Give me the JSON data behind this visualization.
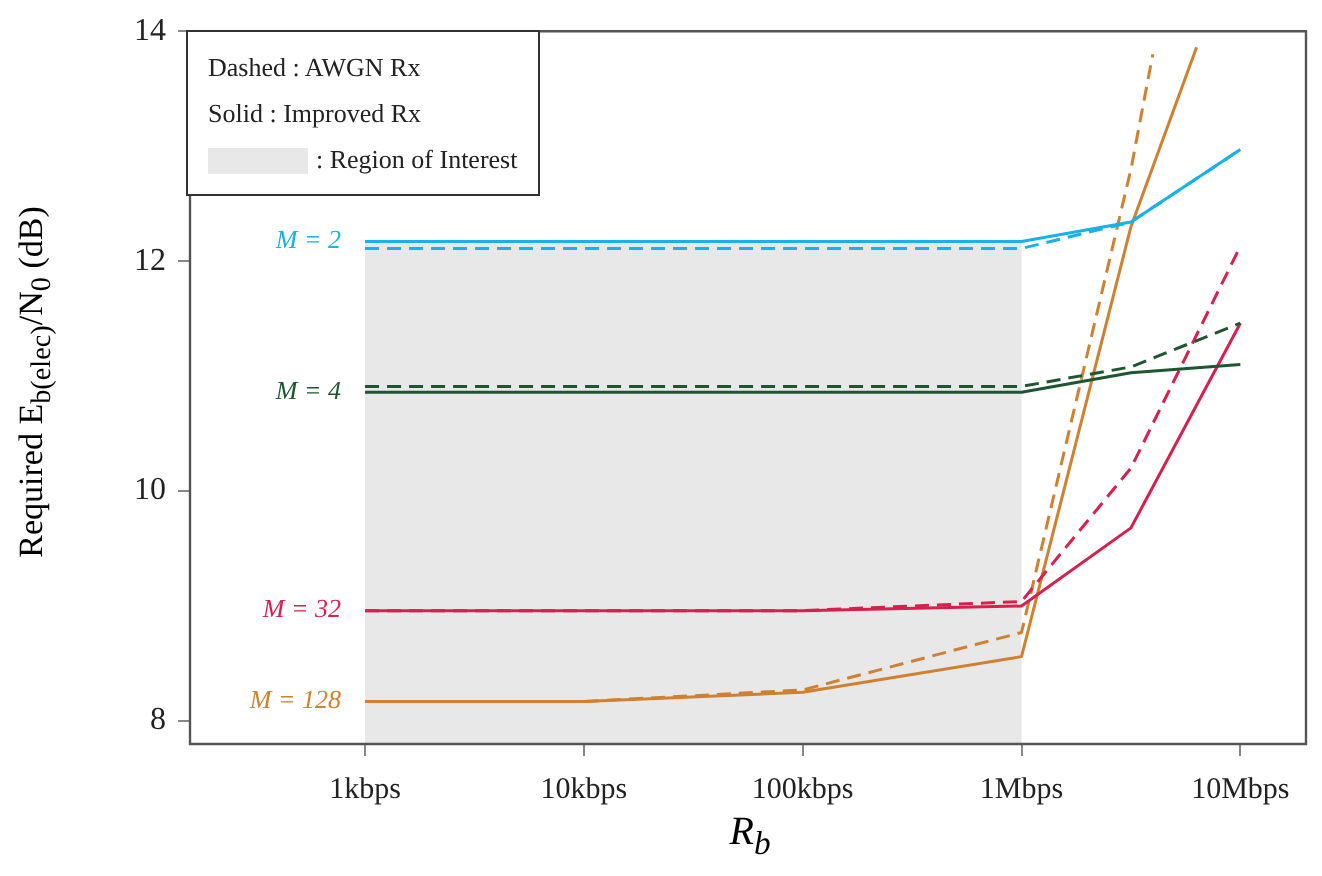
{
  "chart_data": {
    "type": "line",
    "xlabel": "R$_{b}$",
    "ylabel": "Required E$_{b(elec)}$/N$_{0}$ (dB)",
    "grid": false,
    "legend": "top left",
    "marker": "none",
    "categories": [
      null,
      null,
      null,
      null,
      null,
      null,
      null,
      null,
      "1kbps",
      null,
      null,
      null,
      null,
      null,
      null,
      null,
      null,
      null,
      "10kbps",
      null,
      null,
      null,
      null,
      null,
      null,
      null,
      null,
      null,
      "100kbps",
      null,
      null,
      null,
      null,
      null,
      null,
      null,
      null,
      null,
      "1Mbps",
      null,
      null,
      null,
      null,
      null,
      null,
      null,
      null,
      null,
      "10Mbps",
      null,
      null,
      null
    ],
    "ylim": [
      7.8,
      14
    ],
    "yticks": [
      8,
      10,
      12,
      14
    ],
    "annotations": [
      "Dashed : AWGN Rx",
      "Solid : Improved Rx"
    ],
    "bands": [
      {
        "axis": "x",
        "from": "1kbps",
        "to": "1Mbps",
        "label": ": Region of Interest",
        "color": "#e8e8e8"
      }
    ],
    "series": [
      {
        "name": "M = 2",
        "color": "#1ab0e8",
        "line_style": "solid",
        "values": [
          null,
          null,
          null,
          null,
          null,
          null,
          null,
          null,
          12.17,
          null,
          null,
          null,
          null,
          null,
          null,
          null,
          null,
          null,
          12.17,
          null,
          null,
          null,
          null,
          null,
          null,
          null,
          null,
          null,
          12.17,
          null,
          null,
          null,
          null,
          null,
          null,
          null,
          null,
          null,
          12.17,
          null,
          null,
          null,
          null,
          12.34,
          null,
          null,
          null,
          null,
          12.97,
          null,
          null,
          null
        ]
      },
      {
        "color": "#1ab0e8",
        "line_style": "dashed",
        "values": [
          null,
          null,
          null,
          null,
          null,
          null,
          null,
          null,
          12.11,
          null,
          null,
          null,
          null,
          null,
          null,
          null,
          null,
          null,
          12.11,
          null,
          null,
          null,
          null,
          null,
          null,
          null,
          null,
          null,
          12.11,
          null,
          null,
          null,
          null,
          null,
          null,
          null,
          null,
          null,
          12.11,
          null,
          null,
          null,
          null,
          12.34,
          null,
          null,
          null,
          null,
          12.97,
          null,
          null,
          null
        ]
      },
      {
        "name": "M = 4",
        "color": "#1e5631",
        "line_style": "solid",
        "values": [
          null,
          null,
          null,
          null,
          null,
          null,
          null,
          null,
          10.86,
          null,
          null,
          null,
          null,
          null,
          null,
          null,
          null,
          null,
          10.86,
          null,
          null,
          null,
          null,
          null,
          null,
          null,
          null,
          null,
          10.86,
          null,
          null,
          null,
          null,
          null,
          null,
          null,
          null,
          null,
          10.86,
          null,
          null,
          null,
          null,
          11.03,
          null,
          null,
          null,
          null,
          11.1,
          null,
          null,
          null
        ]
      },
      {
        "color": "#1e5631",
        "line_style": "dashed",
        "values": [
          null,
          null,
          null,
          null,
          null,
          null,
          null,
          null,
          10.91,
          null,
          null,
          null,
          null,
          null,
          null,
          null,
          null,
          null,
          10.91,
          null,
          null,
          null,
          null,
          null,
          null,
          null,
          null,
          null,
          10.91,
          null,
          null,
          null,
          null,
          null,
          null,
          null,
          null,
          null,
          10.91,
          null,
          null,
          null,
          null,
          11.08,
          null,
          null,
          null,
          null,
          11.46,
          null,
          null,
          null
        ]
      },
      {
        "name": "M = 32",
        "color": "#d6204e",
        "line_style": "solid",
        "values": [
          null,
          null,
          null,
          null,
          null,
          null,
          null,
          null,
          8.96,
          null,
          null,
          null,
          null,
          null,
          null,
          null,
          null,
          null,
          8.96,
          null,
          null,
          null,
          null,
          null,
          null,
          null,
          null,
          null,
          8.96,
          null,
          null,
          null,
          null,
          null,
          null,
          null,
          null,
          null,
          9.0,
          null,
          null,
          null,
          null,
          9.68,
          null,
          null,
          null,
          null,
          11.46,
          null,
          null,
          null
        ]
      },
      {
        "color": "#d6204e",
        "line_style": "dashed",
        "values": [
          null,
          null,
          null,
          null,
          null,
          null,
          null,
          null,
          8.96,
          null,
          null,
          null,
          null,
          null,
          null,
          null,
          null,
          null,
          8.96,
          null,
          null,
          null,
          null,
          null,
          null,
          null,
          null,
          null,
          8.96,
          null,
          null,
          null,
          null,
          null,
          null,
          null,
          null,
          null,
          9.04,
          null,
          null,
          null,
          null,
          10.2,
          null,
          null,
          null,
          null,
          12.13,
          null,
          null,
          null
        ]
      },
      {
        "name": "M = 128",
        "color": "#cf8030",
        "line_style": "solid",
        "values": [
          null,
          null,
          null,
          null,
          null,
          null,
          null,
          null,
          8.17,
          null,
          null,
          null,
          null,
          null,
          null,
          null,
          null,
          null,
          8.17,
          null,
          null,
          null,
          null,
          null,
          null,
          null,
          null,
          null,
          8.25,
          null,
          null,
          null,
          null,
          null,
          null,
          null,
          null,
          null,
          8.56,
          null,
          null,
          null,
          null,
          12.3,
          null,
          null,
          13.86,
          null,
          null,
          null,
          null,
          null
        ]
      },
      {
        "color": "#cf8030",
        "line_style": "dashed",
        "values": [
          null,
          null,
          null,
          null,
          null,
          null,
          null,
          null,
          8.17,
          null,
          null,
          null,
          null,
          null,
          null,
          null,
          null,
          null,
          8.17,
          null,
          null,
          null,
          null,
          null,
          null,
          null,
          null,
          null,
          8.27,
          null,
          null,
          null,
          null,
          null,
          null,
          null,
          null,
          null,
          8.77,
          null,
          null,
          null,
          null,
          12.8,
          13.8,
          null,
          null,
          null,
          null,
          null,
          null,
          null
        ]
      }
    ]
  }
}
